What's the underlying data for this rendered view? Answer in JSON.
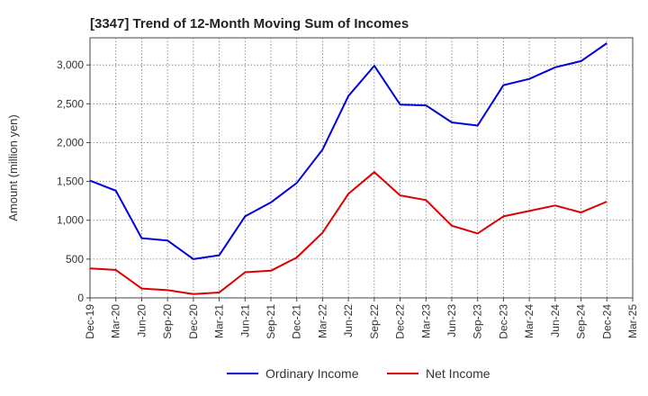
{
  "chart_data": {
    "type": "line",
    "title": "[3347]  Trend of 12-Month Moving Sum of Incomes",
    "xlabel": "",
    "ylabel": "Amount (million yen)",
    "ylim": [
      0,
      3350
    ],
    "yticks": [
      0,
      500,
      1000,
      1500,
      2000,
      2500,
      3000
    ],
    "ytick_labels": [
      "0",
      "500",
      "1,000",
      "1,500",
      "2,000",
      "2,500",
      "3,000"
    ],
    "x": [
      "Dec-19",
      "Mar-20",
      "Jun-20",
      "Sep-20",
      "Dec-20",
      "Mar-21",
      "Jun-21",
      "Sep-21",
      "Dec-21",
      "Mar-22",
      "Jun-22",
      "Sep-22",
      "Dec-22",
      "Mar-23",
      "Jun-23",
      "Sep-23",
      "Dec-23",
      "Mar-24",
      "Jun-24",
      "Sep-24",
      "Dec-24",
      "Mar-25"
    ],
    "grid": true,
    "legend_position": "bottom",
    "series": [
      {
        "name": "Ordinary Income",
        "color": "#0000dd",
        "values": [
          1510,
          1380,
          770,
          740,
          500,
          550,
          1050,
          1230,
          1480,
          1910,
          2600,
          2990,
          2490,
          2480,
          2260,
          2220,
          2740,
          2820,
          2970,
          3050,
          3280,
          null
        ]
      },
      {
        "name": "Net Income",
        "color": "#dd0000",
        "values": [
          380,
          360,
          120,
          100,
          50,
          70,
          330,
          350,
          520,
          840,
          1340,
          1620,
          1320,
          1260,
          930,
          830,
          1050,
          1120,
          1190,
          1100,
          1240,
          null
        ]
      }
    ]
  }
}
